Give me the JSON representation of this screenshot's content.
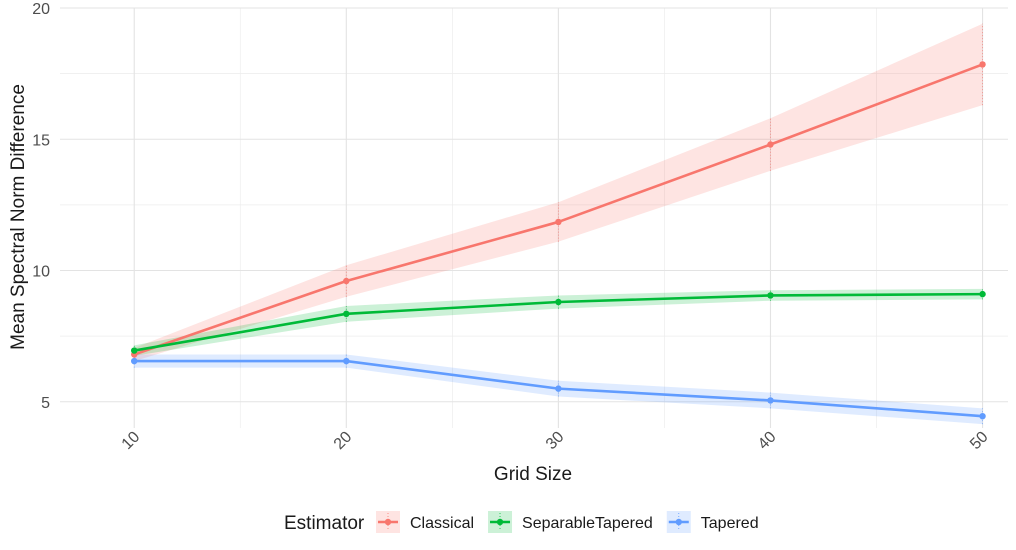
{
  "chart_data": {
    "type": "line",
    "xlabel": "Grid Size",
    "ylabel": "Mean Spectral Norm Difference",
    "x": [
      10,
      20,
      30,
      40,
      50
    ],
    "xlim": [
      6.5,
      51.2
    ],
    "ylim": [
      4.0,
      20.0
    ],
    "xticks": [
      10,
      20,
      30,
      40,
      50
    ],
    "yticks": [
      5,
      10,
      15,
      20
    ],
    "grid": true,
    "legend": {
      "title": "Estimator",
      "position": "bottom"
    },
    "series": [
      {
        "name": "Classical",
        "color": "#F8766D",
        "values": [
          6.8,
          9.6,
          11.85,
          14.8,
          17.85
        ],
        "lower": [
          6.55,
          9.0,
          11.1,
          13.8,
          16.3
        ],
        "upper": [
          7.05,
          10.2,
          12.6,
          15.8,
          19.4
        ]
      },
      {
        "name": "SeparableTapered",
        "color": "#00BA38",
        "values": [
          6.95,
          8.35,
          8.8,
          9.05,
          9.1
        ],
        "lower": [
          6.75,
          8.05,
          8.55,
          8.85,
          8.9
        ],
        "upper": [
          7.15,
          8.65,
          9.05,
          9.25,
          9.3
        ]
      },
      {
        "name": "Tapered",
        "color": "#619CFF",
        "values": [
          6.55,
          6.55,
          5.5,
          5.05,
          4.45
        ],
        "lower": [
          6.3,
          6.3,
          5.2,
          4.75,
          4.15
        ],
        "upper": [
          6.8,
          6.8,
          5.8,
          5.35,
          4.75
        ]
      }
    ]
  }
}
